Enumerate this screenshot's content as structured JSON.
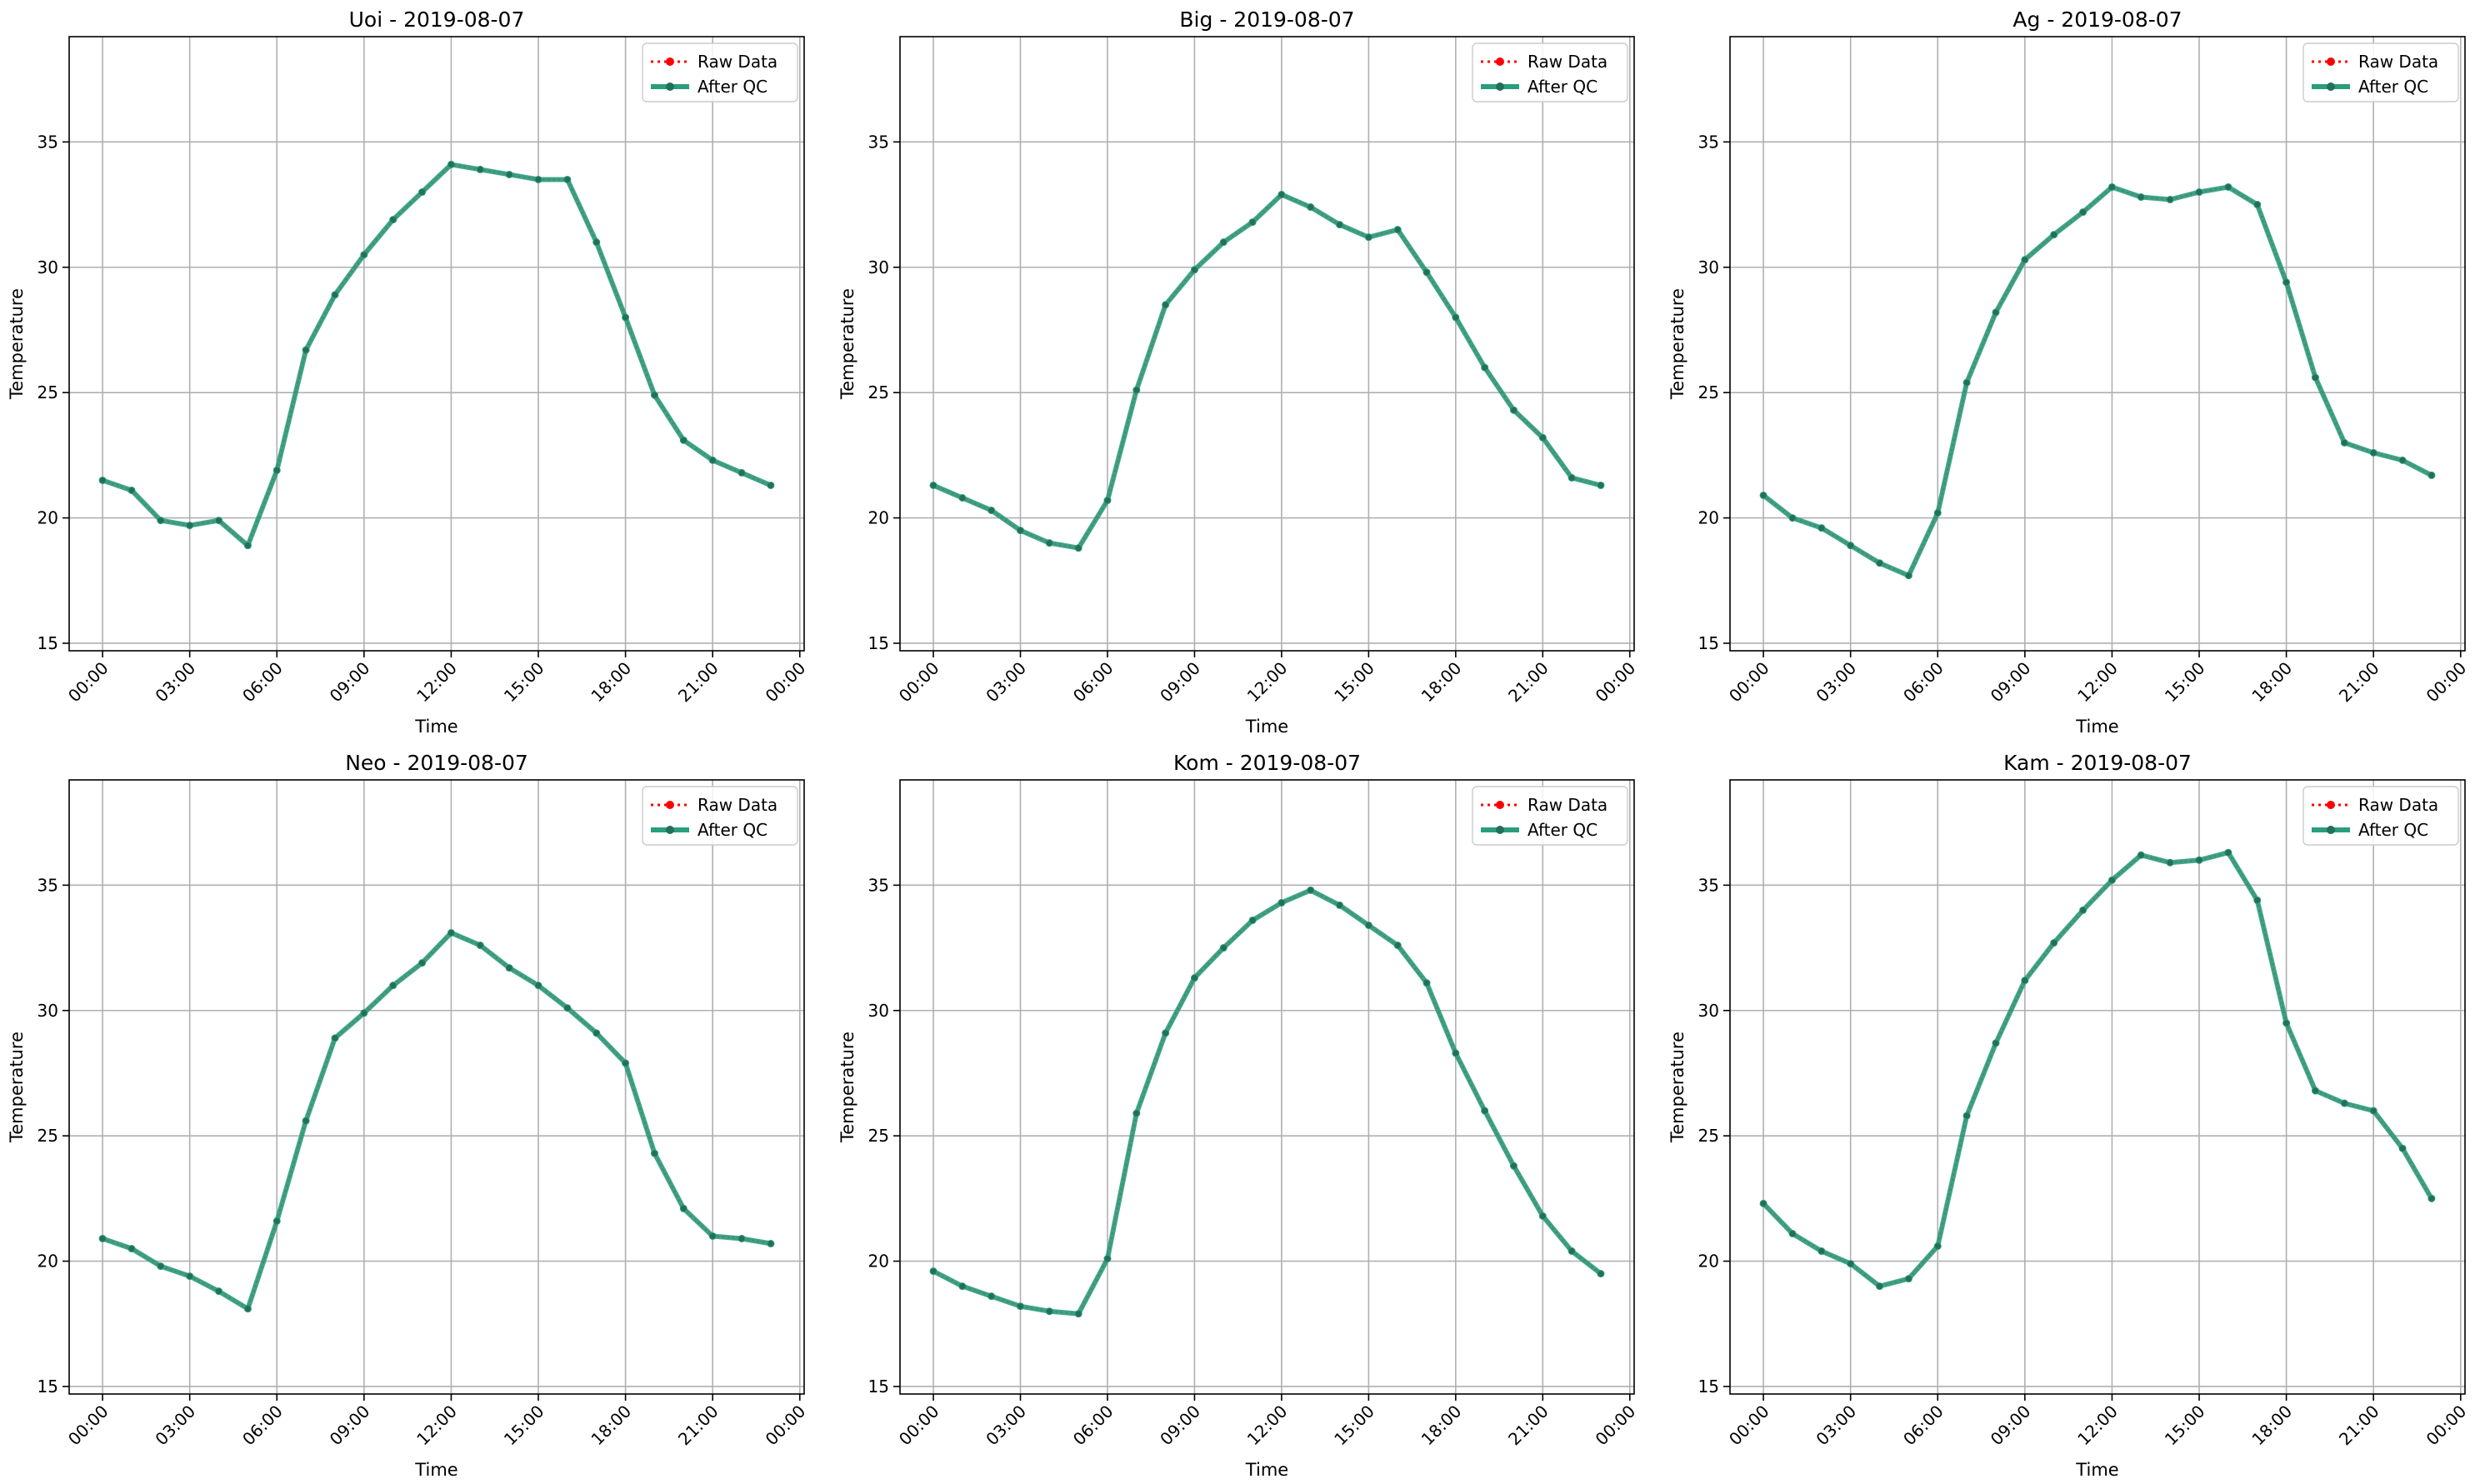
{
  "figure": {
    "colors": {
      "raw": "#ff0000",
      "qc": "#2a9d7c",
      "grid": "#b0b0b0",
      "axis": "#000000"
    }
  },
  "chart_data": [
    {
      "type": "line",
      "title": "Uoi - 2019-08-07",
      "xlabel": "Time",
      "ylabel": "Temperature",
      "ylim": [
        14.7,
        39.2
      ],
      "xlim": [
        -1.15,
        24.15
      ],
      "xticks": [
        0,
        3,
        6,
        9,
        12,
        15,
        18,
        21,
        24
      ],
      "xtick_labels": [
        "00:00",
        "03:00",
        "06:00",
        "09:00",
        "12:00",
        "15:00",
        "18:00",
        "21:00",
        "00:00"
      ],
      "yticks": [
        15,
        20,
        25,
        30,
        35
      ],
      "ytick_labels": [
        "15",
        "20",
        "25",
        "30",
        "35"
      ],
      "grid": true,
      "legend": "upper-right",
      "x": [
        0,
        1,
        2,
        3,
        4,
        5,
        6,
        7,
        8,
        9,
        10,
        11,
        12,
        13,
        14,
        15,
        16,
        17,
        18,
        19,
        20,
        21,
        22,
        23
      ],
      "series": [
        {
          "name": "Raw Data",
          "values": [
            21.5,
            21.1,
            19.9,
            19.7,
            19.9,
            18.9,
            21.9,
            26.7,
            28.9,
            30.5,
            31.9,
            33.0,
            34.1,
            33.9,
            33.7,
            33.5,
            33.5,
            31.0,
            28.0,
            24.9,
            23.1,
            22.3,
            21.8,
            21.3
          ]
        },
        {
          "name": "After QC",
          "values": [
            21.5,
            21.1,
            19.9,
            19.7,
            19.9,
            18.9,
            21.9,
            26.7,
            28.9,
            30.5,
            31.9,
            33.0,
            34.1,
            33.9,
            33.7,
            33.5,
            33.5,
            31.0,
            28.0,
            24.9,
            23.1,
            22.3,
            21.8,
            21.3
          ]
        }
      ]
    },
    {
      "type": "line",
      "title": "Big - 2019-08-07",
      "xlabel": "Time",
      "ylabel": "Temperature",
      "ylim": [
        14.7,
        39.2
      ],
      "xlim": [
        -1.15,
        24.15
      ],
      "xticks": [
        0,
        3,
        6,
        9,
        12,
        15,
        18,
        21,
        24
      ],
      "xtick_labels": [
        "00:00",
        "03:00",
        "06:00",
        "09:00",
        "12:00",
        "15:00",
        "18:00",
        "21:00",
        "00:00"
      ],
      "yticks": [
        15,
        20,
        25,
        30,
        35
      ],
      "ytick_labels": [
        "15",
        "20",
        "25",
        "30",
        "35"
      ],
      "grid": true,
      "legend": "upper-right",
      "x": [
        0,
        1,
        2,
        3,
        4,
        5,
        6,
        7,
        8,
        9,
        10,
        11,
        12,
        13,
        14,
        15,
        16,
        17,
        18,
        19,
        20,
        21,
        22,
        23
      ],
      "series": [
        {
          "name": "Raw Data",
          "values": [
            21.3,
            20.8,
            20.3,
            19.5,
            19.0,
            18.8,
            20.7,
            25.1,
            28.5,
            29.9,
            31.0,
            31.8,
            32.9,
            32.4,
            31.7,
            31.2,
            31.5,
            29.8,
            28.0,
            26.0,
            24.3,
            23.2,
            21.6,
            21.3
          ]
        },
        {
          "name": "After QC",
          "values": [
            21.3,
            20.8,
            20.3,
            19.5,
            19.0,
            18.8,
            20.7,
            25.1,
            28.5,
            29.9,
            31.0,
            31.8,
            32.9,
            32.4,
            31.7,
            31.2,
            31.5,
            29.8,
            28.0,
            26.0,
            24.3,
            23.2,
            21.6,
            21.3
          ]
        }
      ]
    },
    {
      "type": "line",
      "title": "Ag - 2019-08-07",
      "xlabel": "Time",
      "ylabel": "Temperature",
      "ylim": [
        14.7,
        39.2
      ],
      "xlim": [
        -1.15,
        24.15
      ],
      "xticks": [
        0,
        3,
        6,
        9,
        12,
        15,
        18,
        21,
        24
      ],
      "xtick_labels": [
        "00:00",
        "03:00",
        "06:00",
        "09:00",
        "12:00",
        "15:00",
        "18:00",
        "21:00",
        "00:00"
      ],
      "yticks": [
        15,
        20,
        25,
        30,
        35
      ],
      "ytick_labels": [
        "15",
        "20",
        "25",
        "30",
        "35"
      ],
      "grid": true,
      "legend": "upper-right",
      "x": [
        0,
        1,
        2,
        3,
        4,
        5,
        6,
        7,
        8,
        9,
        10,
        11,
        12,
        13,
        14,
        15,
        16,
        17,
        18,
        19,
        20,
        21,
        22,
        23
      ],
      "series": [
        {
          "name": "Raw Data",
          "values": [
            20.9,
            20.0,
            19.6,
            18.9,
            18.2,
            17.7,
            20.2,
            25.4,
            28.2,
            30.3,
            31.3,
            32.2,
            33.2,
            32.8,
            32.7,
            33.0,
            33.2,
            32.5,
            29.4,
            25.6,
            23.0,
            22.6,
            22.3,
            21.7
          ]
        },
        {
          "name": "After QC",
          "values": [
            20.9,
            20.0,
            19.6,
            18.9,
            18.2,
            17.7,
            20.2,
            25.4,
            28.2,
            30.3,
            31.3,
            32.2,
            33.2,
            32.8,
            32.7,
            33.0,
            33.2,
            32.5,
            29.4,
            25.6,
            23.0,
            22.6,
            22.3,
            21.7
          ]
        }
      ]
    },
    {
      "type": "line",
      "title": "Neo - 2019-08-07",
      "xlabel": "Time",
      "ylabel": "Temperature",
      "ylim": [
        14.7,
        39.2
      ],
      "xlim": [
        -1.15,
        24.15
      ],
      "xticks": [
        0,
        3,
        6,
        9,
        12,
        15,
        18,
        21,
        24
      ],
      "xtick_labels": [
        "00:00",
        "03:00",
        "06:00",
        "09:00",
        "12:00",
        "15:00",
        "18:00",
        "21:00",
        "00:00"
      ],
      "yticks": [
        15,
        20,
        25,
        30,
        35
      ],
      "ytick_labels": [
        "15",
        "20",
        "25",
        "30",
        "35"
      ],
      "grid": true,
      "legend": "upper-right",
      "x": [
        0,
        1,
        2,
        3,
        4,
        5,
        6,
        7,
        8,
        9,
        10,
        11,
        12,
        13,
        14,
        15,
        16,
        17,
        18,
        19,
        20,
        21,
        22,
        23
      ],
      "series": [
        {
          "name": "Raw Data",
          "values": [
            20.9,
            20.5,
            19.8,
            19.4,
            18.8,
            18.1,
            21.6,
            25.6,
            28.9,
            29.9,
            31.0,
            31.9,
            33.1,
            32.6,
            31.7,
            31.0,
            30.1,
            29.1,
            27.9,
            24.3,
            22.1,
            21.0,
            20.9,
            20.7
          ]
        },
        {
          "name": "After QC",
          "values": [
            20.9,
            20.5,
            19.8,
            19.4,
            18.8,
            18.1,
            21.6,
            25.6,
            28.9,
            29.9,
            31.0,
            31.9,
            33.1,
            32.6,
            31.7,
            31.0,
            30.1,
            29.1,
            27.9,
            24.3,
            22.1,
            21.0,
            20.9,
            20.7
          ]
        }
      ]
    },
    {
      "type": "line",
      "title": "Kom - 2019-08-07",
      "xlabel": "Time",
      "ylabel": "Temperature",
      "ylim": [
        14.7,
        39.2
      ],
      "xlim": [
        -1.15,
        24.15
      ],
      "xticks": [
        0,
        3,
        6,
        9,
        12,
        15,
        18,
        21,
        24
      ],
      "xtick_labels": [
        "00:00",
        "03:00",
        "06:00",
        "09:00",
        "12:00",
        "15:00",
        "18:00",
        "21:00",
        "00:00"
      ],
      "yticks": [
        15,
        20,
        25,
        30,
        35
      ],
      "ytick_labels": [
        "15",
        "20",
        "25",
        "30",
        "35"
      ],
      "grid": true,
      "legend": "upper-right",
      "x": [
        0,
        1,
        2,
        3,
        4,
        5,
        6,
        7,
        8,
        9,
        10,
        11,
        12,
        13,
        14,
        15,
        16,
        17,
        18,
        19,
        20,
        21,
        22,
        23
      ],
      "series": [
        {
          "name": "Raw Data",
          "values": [
            19.6,
            19.0,
            18.6,
            18.2,
            18.0,
            17.9,
            20.1,
            25.9,
            29.1,
            31.3,
            32.5,
            33.6,
            34.3,
            34.8,
            34.2,
            33.4,
            32.6,
            31.1,
            28.3,
            26.0,
            23.8,
            21.8,
            20.4,
            19.5
          ]
        },
        {
          "name": "After QC",
          "values": [
            19.6,
            19.0,
            18.6,
            18.2,
            18.0,
            17.9,
            20.1,
            25.9,
            29.1,
            31.3,
            32.5,
            33.6,
            34.3,
            34.8,
            34.2,
            33.4,
            32.6,
            31.1,
            28.3,
            26.0,
            23.8,
            21.8,
            20.4,
            19.5
          ]
        }
      ]
    },
    {
      "type": "line",
      "title": "Kam - 2019-08-07",
      "xlabel": "Time",
      "ylabel": "Temperature",
      "ylim": [
        14.7,
        39.2
      ],
      "xlim": [
        -1.15,
        24.15
      ],
      "xticks": [
        0,
        3,
        6,
        9,
        12,
        15,
        18,
        21,
        24
      ],
      "xtick_labels": [
        "00:00",
        "03:00",
        "06:00",
        "09:00",
        "12:00",
        "15:00",
        "18:00",
        "21:00",
        "00:00"
      ],
      "yticks": [
        15,
        20,
        25,
        30,
        35
      ],
      "ytick_labels": [
        "15",
        "20",
        "25",
        "30",
        "35"
      ],
      "grid": true,
      "legend": "upper-right",
      "x": [
        0,
        1,
        2,
        3,
        4,
        5,
        6,
        7,
        8,
        9,
        10,
        11,
        12,
        13,
        14,
        15,
        16,
        17,
        18,
        19,
        20,
        21,
        22,
        23
      ],
      "series": [
        {
          "name": "Raw Data",
          "values": [
            22.3,
            21.1,
            20.4,
            19.9,
            19.0,
            19.3,
            20.6,
            25.8,
            28.7,
            31.2,
            32.7,
            34.0,
            35.2,
            36.2,
            35.9,
            36.0,
            36.3,
            34.4,
            29.5,
            26.8,
            26.3,
            26.0,
            24.5,
            22.5
          ]
        },
        {
          "name": "After QC",
          "values": [
            22.3,
            21.1,
            20.4,
            19.9,
            19.0,
            19.3,
            20.6,
            25.8,
            28.7,
            31.2,
            32.7,
            34.0,
            35.2,
            36.2,
            35.9,
            36.0,
            36.3,
            34.4,
            29.5,
            26.8,
            26.3,
            26.0,
            24.5,
            22.5
          ]
        }
      ]
    }
  ]
}
